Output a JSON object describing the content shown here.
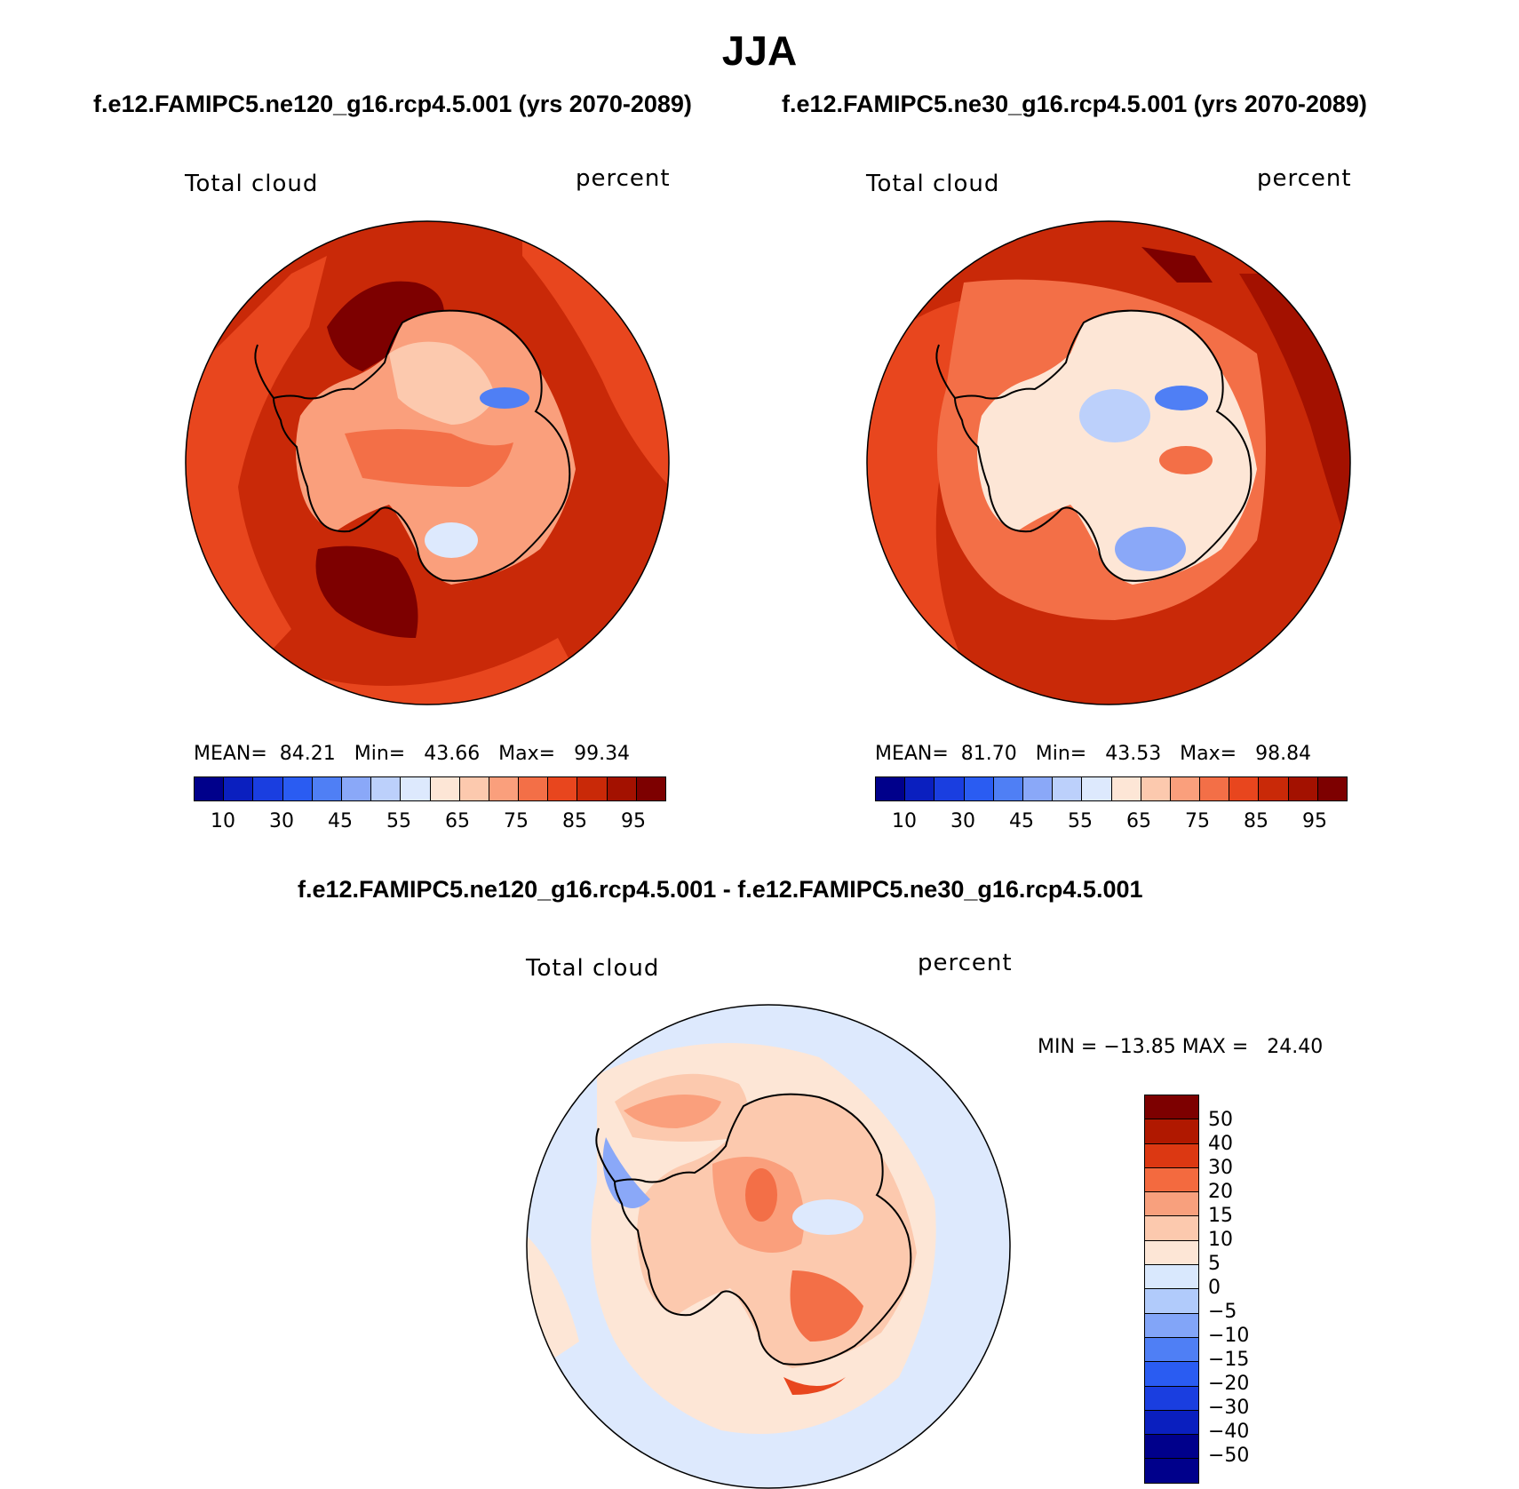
{
  "figure": {
    "title": "JJA",
    "subtitle_left": "f.e12.FAMIPC5.ne120_g16.rcp4.5.001 (yrs 2070-2089)",
    "subtitle_right": "f.e12.FAMIPC5.ne30_g16.rcp4.5.001 (yrs 2070-2089)",
    "diff_title": "f.e12.FAMIPC5.ne120_g16.rcp4.5.001 - f.e12.FAMIPC5.ne30_g16.rcp4.5.001"
  },
  "panels": {
    "left": {
      "variable": "Total cloud",
      "units": "percent",
      "stats": "MEAN=  84.21   Min=   43.66   Max=   99.34"
    },
    "right": {
      "variable": "Total cloud",
      "units": "percent",
      "stats": "MEAN=  81.70   Min=   43.53   Max=   98.84"
    },
    "diff": {
      "variable": "Total cloud",
      "units": "percent",
      "stats": "MIN = −13.85 MAX =   24.40"
    }
  },
  "colorbar_main": {
    "colors": [
      "#00008b",
      "#0a1fbf",
      "#1a3ee0",
      "#2a5cf2",
      "#4f7ff5",
      "#8aa8f8",
      "#bcd0fb",
      "#dde9fd",
      "#fde6d6",
      "#fcc9ae",
      "#fa9f7c",
      "#f36f47",
      "#e8461e",
      "#c92908",
      "#a31100",
      "#7d0000"
    ],
    "tick_labels": [
      "10",
      "30",
      "45",
      "55",
      "65",
      "75",
      "85",
      "95"
    ]
  },
  "colorbar_diff": {
    "colors": [
      "#7d0000",
      "#b01800",
      "#dc3812",
      "#f36a3f",
      "#f8a07d",
      "#fcc9ae",
      "#fde6d6",
      "#d9e8fd",
      "#b1cbfb",
      "#82a5f8",
      "#4f7ff5",
      "#2a5cf2",
      "#1a3ee0",
      "#0a1fbf",
      "#00008b"
    ],
    "tick_labels": [
      "50",
      "40",
      "30",
      "20",
      "15",
      "10",
      "5",
      "0",
      "−5",
      "−10",
      "−15",
      "−20",
      "−30",
      "−40",
      "−50"
    ]
  },
  "map_colors": {
    "ocean_left": "#c92908",
    "ocean_right": "#c92908",
    "ocean_diff": "#fde6d6",
    "coast": "#000000"
  }
}
